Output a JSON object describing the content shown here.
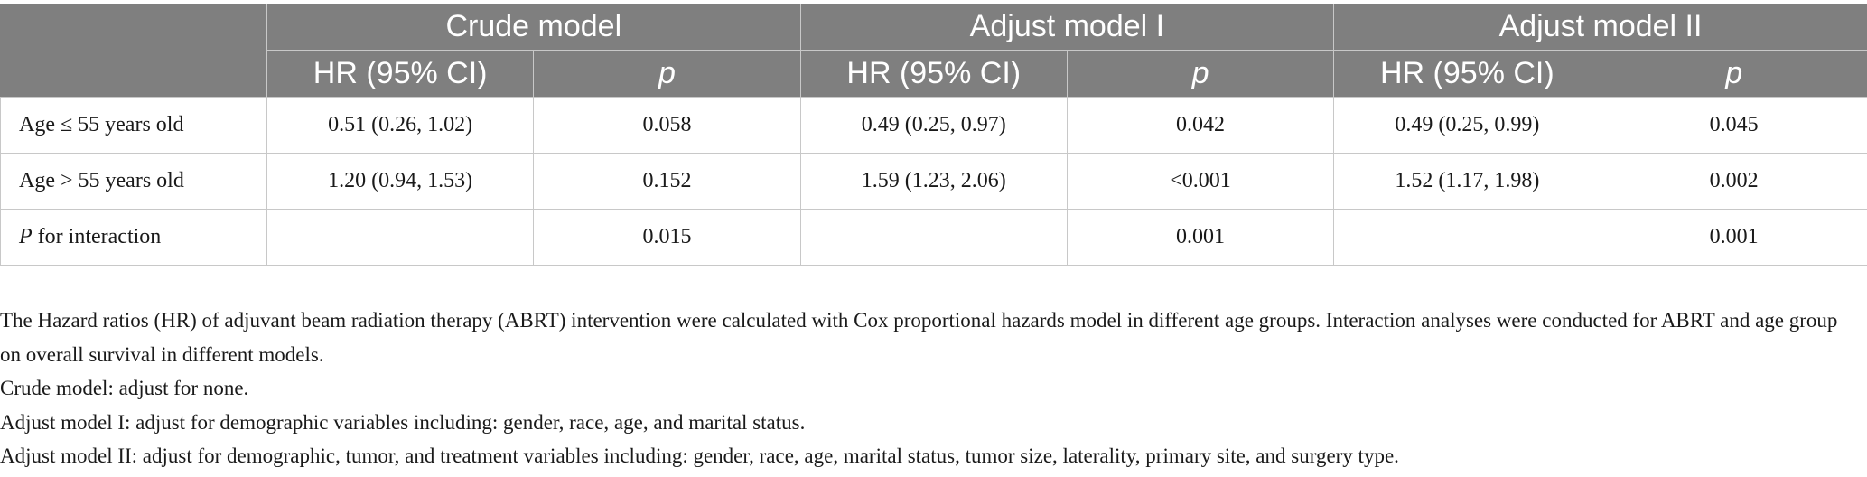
{
  "table": {
    "group_headers": [
      "Crude model",
      "Adjust model I",
      "Adjust model II"
    ],
    "sub_headers": {
      "hr": "HR (95% CI)",
      "p": "p"
    },
    "rows": [
      {
        "label_pre": "Age ≤ 55 years old",
        "label_ital": "",
        "label_post": "",
        "cells": [
          "0.51 (0.26, 1.02)",
          "0.058",
          "0.49 (0.25, 0.97)",
          "0.042",
          "0.49 (0.25, 0.99)",
          "0.045"
        ]
      },
      {
        "label_pre": "Age > 55 years old",
        "label_ital": "",
        "label_post": "",
        "cells": [
          "1.20 (0.94, 1.53)",
          "0.152",
          "1.59 (1.23, 2.06)",
          "<0.001",
          "1.52 (1.17, 1.98)",
          "0.002"
        ]
      },
      {
        "label_pre": "",
        "label_ital": "P",
        "label_post": " for interaction",
        "cells": [
          "",
          "0.015",
          "",
          "0.001",
          "",
          "0.001"
        ]
      }
    ]
  },
  "footnotes": [
    "The Hazard ratios (HR) of adjuvant beam radiation therapy (ABRT) intervention were calculated with Cox proportional hazards model in different age groups. Interaction analyses were conducted for ABRT and age group on overall survival in different models.",
    "Crude model: adjust for none.",
    "Adjust model I: adjust for demographic variables including: gender, race, age, and marital status.",
    "Adjust model II: adjust for demographic, tumor, and treatment variables including: gender, race, age, marital status, tumor size, laterality, primary site, and surgery type."
  ],
  "colors": {
    "header_bg": "#7f7f7f",
    "header_text": "#ffffff",
    "grid": "#c8c8c8"
  }
}
